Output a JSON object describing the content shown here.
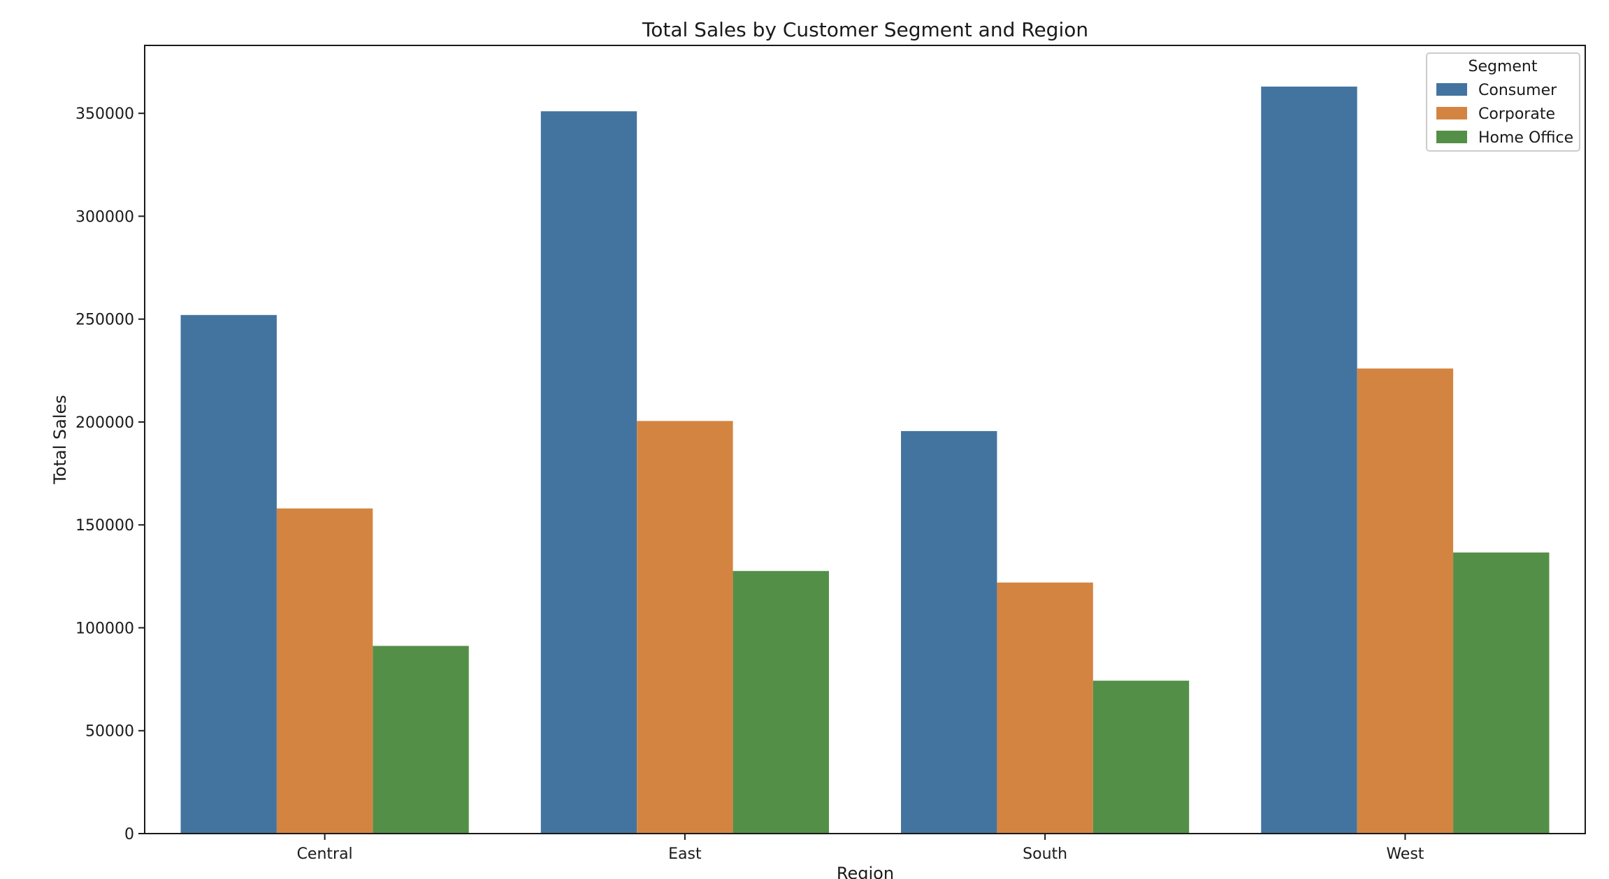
{
  "chart_data": {
    "type": "bar",
    "title": "Total Sales by Customer Segment and Region",
    "xlabel": "Region",
    "ylabel": "Total Sales",
    "categories": [
      "Central",
      "East",
      "South",
      "West"
    ],
    "series": [
      {
        "name": "Consumer",
        "color": "#4374a0",
        "values": [
          252000,
          351000,
          195600,
          363000
        ]
      },
      {
        "name": "Corporate",
        "color": "#d48441",
        "values": [
          158000,
          200500,
          122000,
          226000
        ]
      },
      {
        "name": "Home Office",
        "color": "#548f48",
        "values": [
          91200,
          127600,
          74300,
          136600
        ]
      }
    ],
    "ylim": [
      0,
      383000
    ],
    "yticks": [
      0,
      50000,
      100000,
      150000,
      200000,
      250000,
      300000,
      350000
    ],
    "ytick_labels": [
      "0",
      "50000",
      "100000",
      "150000",
      "200000",
      "250000",
      "300000",
      "350000"
    ],
    "legend": {
      "title": "Segment",
      "placement": "top-right"
    },
    "grid": false
  }
}
